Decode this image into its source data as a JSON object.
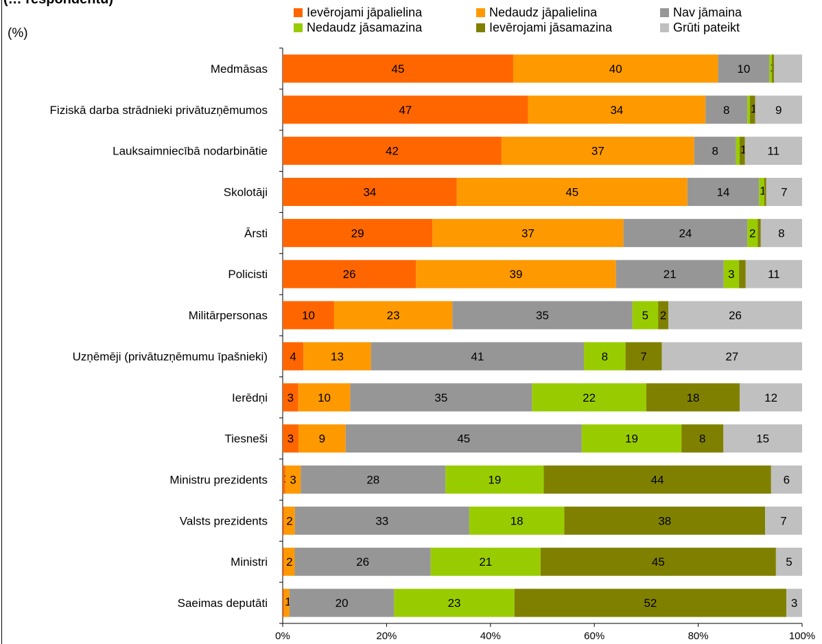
{
  "header": {
    "title_fragment": "(… respondentu)",
    "unit": "(%)"
  },
  "chart_data": {
    "type": "bar",
    "orientation": "horizontal",
    "stacked": true,
    "categories": [
      "Medmāsas",
      "Fiziskā darba strādnieki privātuzņēmumos",
      "Lauksaimniecībā nodarbinātie",
      "Skolotāji",
      "Ārsti",
      "Policisti",
      "Militārpersonas",
      "Uzņēmēji (privātuzņēmumu īpašnieki)",
      "Ierēdņi",
      "Tiesneši",
      "Ministru prezidents",
      "Valsts prezidents",
      "Ministri",
      "Saeimas deputāti"
    ],
    "series": [
      {
        "name": "Ievērojami jāpalielina",
        "color": "#FF6600",
        "values": [
          45,
          47,
          42,
          34,
          29,
          26,
          10,
          4,
          3,
          3,
          0.5,
          0.3,
          0.3,
          0.3
        ]
      },
      {
        "name": "Nedaudz jāpalielina",
        "color": "#FF9900",
        "values": [
          40,
          34,
          37,
          45,
          37,
          39,
          23,
          13,
          10,
          9,
          3,
          2,
          2,
          1
        ]
      },
      {
        "name": "Nav jāmaina",
        "color": "#969696",
        "values": [
          10,
          8,
          8,
          14,
          24,
          21,
          35,
          41,
          35,
          45,
          28,
          33,
          26,
          20
        ]
      },
      {
        "name": "Nedaudz jāsamazina",
        "color": "#99CC00",
        "values": [
          0.5,
          0.5,
          0.7,
          1,
          2,
          3,
          5,
          8,
          22,
          19,
          19,
          18,
          21,
          23
        ]
      },
      {
        "name": "Ievērojami jāsamazina",
        "color": "#808000",
        "values": [
          0.4,
          1,
          1,
          0.4,
          0.6,
          1.3,
          2,
          7,
          18,
          8,
          44,
          38,
          45,
          52
        ]
      },
      {
        "name": "Grūti pateikt",
        "color": "#C0C0C0",
        "values": [
          5.5,
          9,
          11,
          7,
          8,
          11,
          26,
          27,
          12,
          15,
          6,
          7,
          5,
          3
        ]
      }
    ],
    "labels": [
      [
        "45",
        "40",
        "10",
        "1",
        "",
        ""
      ],
      [
        "47",
        "34",
        "8",
        "",
        "1",
        "9"
      ],
      [
        "42",
        "37",
        "8",
        "",
        "1",
        "11"
      ],
      [
        "34",
        "45",
        "14",
        "1",
        "",
        "7"
      ],
      [
        "29",
        "37",
        "24",
        "2",
        "",
        "8"
      ],
      [
        "26",
        "39",
        "21",
        "3",
        "",
        "11"
      ],
      [
        "10",
        "23",
        "35",
        "5",
        "2",
        "26"
      ],
      [
        "4",
        "13",
        "41",
        "8",
        "7",
        "27"
      ],
      [
        "3",
        "10",
        "35",
        "22",
        "18",
        "12"
      ],
      [
        "3",
        "9",
        "45",
        "19",
        "8",
        "15"
      ],
      [
        "1",
        "3",
        "28",
        "19",
        "44",
        "6"
      ],
      [
        "",
        "2",
        "33",
        "18",
        "38",
        "7"
      ],
      [
        "",
        "2",
        "26",
        "21",
        "45",
        "5"
      ],
      [
        "",
        "1",
        "20",
        "23",
        "52",
        "3"
      ]
    ],
    "xticks": [
      "0%",
      "20%",
      "40%",
      "60%",
      "80%",
      "100%"
    ],
    "xlim": [
      0,
      100
    ],
    "grid": true,
    "legend_position": "top"
  }
}
